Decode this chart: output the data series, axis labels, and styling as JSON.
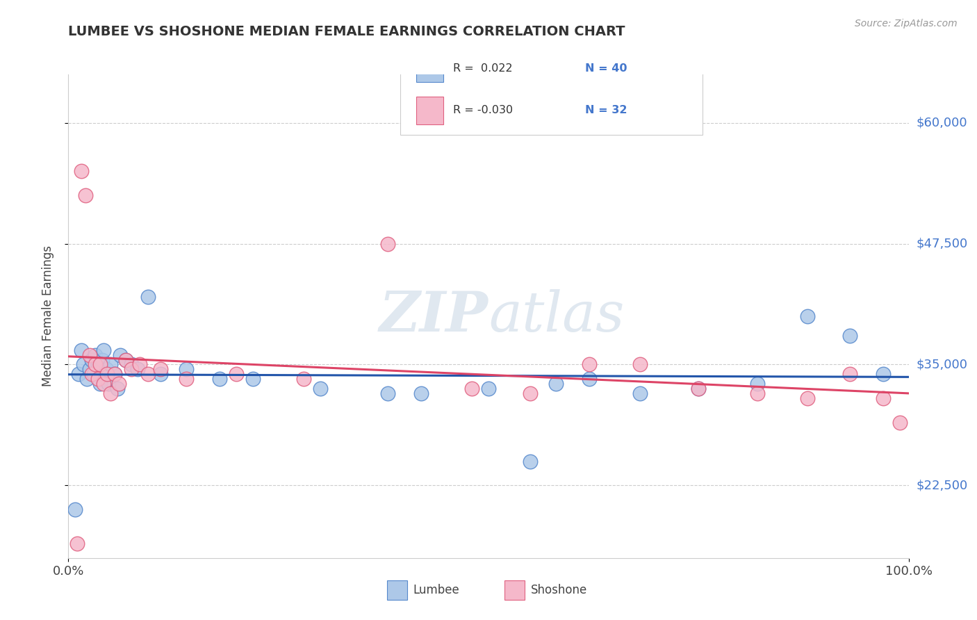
{
  "title": "LUMBEE VS SHOSHONE MEDIAN FEMALE EARNINGS CORRELATION CHART",
  "source": "Source: ZipAtlas.com",
  "ylabel": "Median Female Earnings",
  "xlim": [
    0,
    1.0
  ],
  "ylim": [
    15000,
    65000
  ],
  "xtick_positions": [
    0.0,
    1.0
  ],
  "xtick_labels": [
    "0.0%",
    "100.0%"
  ],
  "ytick_values": [
    22500,
    35000,
    47500,
    60000
  ],
  "ytick_labels": [
    "$22,500",
    "$35,000",
    "$47,500",
    "$60,000"
  ],
  "lumbee_color": "#adc8e8",
  "shoshone_color": "#f5b8ca",
  "lumbee_edge_color": "#5588cc",
  "shoshone_edge_color": "#e06080",
  "lumbee_line_color": "#2255aa",
  "shoshone_line_color": "#dd4466",
  "yaxis_label_color": "#4477cc",
  "background_color": "#ffffff",
  "watermark_color": "#e0e8f0",
  "lumbee_x": [
    0.008,
    0.012,
    0.015,
    0.018,
    0.022,
    0.025,
    0.028,
    0.03,
    0.032,
    0.035,
    0.038,
    0.04,
    0.042,
    0.045,
    0.048,
    0.05,
    0.055,
    0.058,
    0.062,
    0.068,
    0.075,
    0.082,
    0.095,
    0.11,
    0.14,
    0.18,
    0.22,
    0.3,
    0.38,
    0.42,
    0.5,
    0.55,
    0.58,
    0.62,
    0.68,
    0.75,
    0.82,
    0.88,
    0.93,
    0.97
  ],
  "lumbee_y": [
    20000,
    34000,
    36500,
    35000,
    33500,
    34500,
    35500,
    34000,
    36000,
    35000,
    33000,
    35500,
    36500,
    34500,
    33000,
    35000,
    34000,
    32500,
    36000,
    35500,
    35000,
    34500,
    42000,
    34000,
    34500,
    33500,
    33500,
    32500,
    32000,
    32000,
    32500,
    25000,
    33000,
    33500,
    32000,
    32500,
    33000,
    40000,
    38000,
    34000
  ],
  "shoshone_x": [
    0.01,
    0.015,
    0.02,
    0.025,
    0.028,
    0.032,
    0.035,
    0.038,
    0.042,
    0.046,
    0.05,
    0.055,
    0.06,
    0.068,
    0.075,
    0.085,
    0.095,
    0.11,
    0.14,
    0.2,
    0.28,
    0.38,
    0.48,
    0.55,
    0.62,
    0.68,
    0.75,
    0.82,
    0.88,
    0.93,
    0.97,
    0.99
  ],
  "shoshone_y": [
    16500,
    55000,
    52500,
    36000,
    34000,
    35000,
    33500,
    35000,
    33000,
    34000,
    32000,
    34000,
    33000,
    35500,
    34500,
    35000,
    34000,
    34500,
    33500,
    34000,
    33500,
    47500,
    32500,
    32000,
    35000,
    35000,
    32500,
    32000,
    31500,
    34000,
    31500,
    29000
  ]
}
